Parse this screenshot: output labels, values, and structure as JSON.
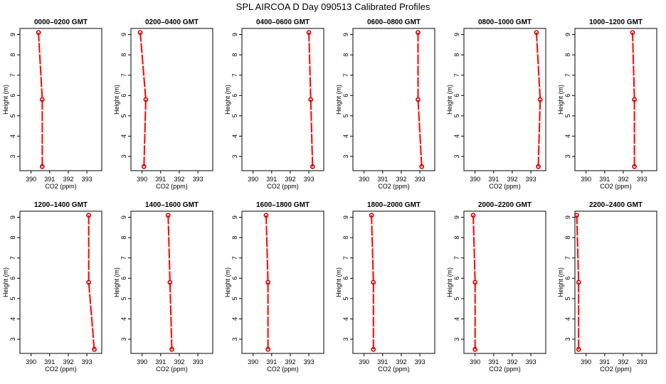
{
  "title": "SPL AIRCOA D  Day 090513  Calibrated Profiles",
  "colors": {
    "line": "#ff0000",
    "marker": "#cc0000",
    "axis": "#000000"
  },
  "chart_data": [
    {
      "type": "line",
      "title": "0000–0200 GMT",
      "xlabel": "CO2 (ppm)",
      "ylabel": "Height (m)",
      "x_ticks": [
        "390",
        "391",
        "392",
        "393"
      ],
      "y_ticks": [
        "3",
        "4",
        "5",
        "6",
        "7",
        "8",
        "9"
      ],
      "xlim": [
        389.4,
        393.8
      ],
      "ylim": [
        2.3,
        9.3
      ],
      "grid": false,
      "series": [
        {
          "x": [
            390.6,
            390.6,
            390.4
          ],
          "y": [
            2.5,
            5.8,
            9.1
          ]
        }
      ]
    },
    {
      "type": "line",
      "title": "0200–0400 GMT",
      "xlabel": "CO2 (ppm)",
      "ylabel": "Height (m)",
      "x_ticks": [
        "390",
        "391",
        "392",
        "393"
      ],
      "y_ticks": [
        "3",
        "4",
        "5",
        "6",
        "7",
        "8",
        "9"
      ],
      "xlim": [
        389.4,
        393.8
      ],
      "ylim": [
        2.3,
        9.3
      ],
      "grid": false,
      "series": [
        {
          "x": [
            390.1,
            390.2,
            389.9
          ],
          "y": [
            2.5,
            5.8,
            9.1
          ]
        }
      ]
    },
    {
      "type": "line",
      "title": "0400–0600 GMT",
      "xlabel": "CO2 (ppm)",
      "ylabel": "Height (m)",
      "x_ticks": [
        "390",
        "391",
        "392",
        "393"
      ],
      "y_ticks": [
        "3",
        "4",
        "5",
        "6",
        "7",
        "8",
        "9"
      ],
      "xlim": [
        389.4,
        393.8
      ],
      "ylim": [
        2.3,
        9.3
      ],
      "grid": false,
      "series": [
        {
          "x": [
            393.2,
            393.1,
            393.0
          ],
          "y": [
            2.5,
            5.8,
            9.1
          ]
        }
      ]
    },
    {
      "type": "line",
      "title": "0600–0800 GMT",
      "xlabel": "CO2 (ppm)",
      "ylabel": "Height (m)",
      "x_ticks": [
        "390",
        "391",
        "392",
        "393"
      ],
      "y_ticks": [
        "3",
        "4",
        "5",
        "6",
        "7",
        "8",
        "9"
      ],
      "xlim": [
        389.4,
        393.8
      ],
      "ylim": [
        2.3,
        9.3
      ],
      "grid": false,
      "series": [
        {
          "x": [
            393.1,
            392.9,
            392.9
          ],
          "y": [
            2.5,
            5.8,
            9.1
          ]
        }
      ]
    },
    {
      "type": "line",
      "title": "0800–1000 GMT",
      "xlabel": "CO2 (ppm)",
      "ylabel": "Height (m)",
      "x_ticks": [
        "390",
        "391",
        "392",
        "393"
      ],
      "y_ticks": [
        "3",
        "4",
        "5",
        "6",
        "7",
        "8",
        "9"
      ],
      "xlim": [
        389.4,
        393.8
      ],
      "ylim": [
        2.3,
        9.3
      ],
      "grid": false,
      "series": [
        {
          "x": [
            393.4,
            393.5,
            393.3
          ],
          "y": [
            2.5,
            5.8,
            9.1
          ]
        }
      ]
    },
    {
      "type": "line",
      "title": "1000–1200 GMT",
      "xlabel": "CO2 (ppm)",
      "ylabel": "Height (m)",
      "x_ticks": [
        "390",
        "391",
        "392",
        "393"
      ],
      "y_ticks": [
        "3",
        "4",
        "5",
        "6",
        "7",
        "8",
        "9"
      ],
      "xlim": [
        389.4,
        393.8
      ],
      "ylim": [
        2.3,
        9.3
      ],
      "grid": false,
      "series": [
        {
          "x": [
            392.6,
            392.6,
            392.5
          ],
          "y": [
            2.5,
            5.8,
            9.1
          ]
        }
      ]
    },
    {
      "type": "line",
      "title": "1200–1400 GMT",
      "xlabel": "CO2 (ppm)",
      "ylabel": "Height (m)",
      "x_ticks": [
        "390",
        "391",
        "392",
        "393"
      ],
      "y_ticks": [
        "3",
        "4",
        "5",
        "6",
        "7",
        "8",
        "9"
      ],
      "xlim": [
        389.4,
        393.8
      ],
      "ylim": [
        2.3,
        9.3
      ],
      "grid": false,
      "series": [
        {
          "x": [
            393.4,
            393.1,
            393.1
          ],
          "y": [
            2.5,
            5.8,
            9.1
          ]
        }
      ]
    },
    {
      "type": "line",
      "title": "1400–1600 GMT",
      "xlabel": "CO2 (ppm)",
      "ylabel": "Height (m)",
      "x_ticks": [
        "390",
        "391",
        "392",
        "393"
      ],
      "y_ticks": [
        "3",
        "4",
        "5",
        "6",
        "7",
        "8",
        "9"
      ],
      "xlim": [
        389.4,
        393.8
      ],
      "ylim": [
        2.3,
        9.3
      ],
      "grid": false,
      "series": [
        {
          "x": [
            391.6,
            391.5,
            391.4
          ],
          "y": [
            2.5,
            5.8,
            9.1
          ]
        }
      ]
    },
    {
      "type": "line",
      "title": "1600–1800 GMT",
      "xlabel": "CO2 (ppm)",
      "ylabel": "Height (m)",
      "x_ticks": [
        "390",
        "391",
        "392",
        "393"
      ],
      "y_ticks": [
        "3",
        "4",
        "5",
        "6",
        "7",
        "8",
        "9"
      ],
      "xlim": [
        389.4,
        393.8
      ],
      "ylim": [
        2.3,
        9.3
      ],
      "grid": false,
      "series": [
        {
          "x": [
            390.8,
            390.8,
            390.7
          ],
          "y": [
            2.5,
            5.8,
            9.1
          ]
        }
      ]
    },
    {
      "type": "line",
      "title": "1800–2000 GMT",
      "xlabel": "CO2 (ppm)",
      "ylabel": "Height (m)",
      "x_ticks": [
        "390",
        "391",
        "392",
        "393"
      ],
      "y_ticks": [
        "3",
        "4",
        "5",
        "6",
        "7",
        "8",
        "9"
      ],
      "xlim": [
        389.4,
        393.8
      ],
      "ylim": [
        2.3,
        9.3
      ],
      "grid": false,
      "series": [
        {
          "x": [
            390.5,
            390.5,
            390.4
          ],
          "y": [
            2.5,
            5.8,
            9.1
          ]
        }
      ]
    },
    {
      "type": "line",
      "title": "2000–2200 GMT",
      "xlabel": "CO2 (ppm)",
      "ylabel": "Height (m)",
      "x_ticks": [
        "390",
        "391",
        "392",
        "393"
      ],
      "y_ticks": [
        "3",
        "4",
        "5",
        "6",
        "7",
        "8",
        "9"
      ],
      "xlim": [
        389.4,
        393.8
      ],
      "ylim": [
        2.3,
        9.3
      ],
      "grid": false,
      "series": [
        {
          "x": [
            390.0,
            390.0,
            389.9
          ],
          "y": [
            2.5,
            5.8,
            9.1
          ]
        }
      ]
    },
    {
      "type": "line",
      "title": "2200–2400 GMT",
      "xlabel": "CO2 (ppm)",
      "ylabel": "Height (m)",
      "x_ticks": [
        "390",
        "391",
        "392",
        "393"
      ],
      "y_ticks": [
        "3",
        "4",
        "5",
        "6",
        "7",
        "8",
        "9"
      ],
      "xlim": [
        389.4,
        393.8
      ],
      "ylim": [
        2.3,
        9.3
      ],
      "grid": false,
      "series": [
        {
          "x": [
            389.6,
            389.6,
            389.5
          ],
          "y": [
            2.5,
            5.8,
            9.1
          ]
        }
      ]
    }
  ]
}
